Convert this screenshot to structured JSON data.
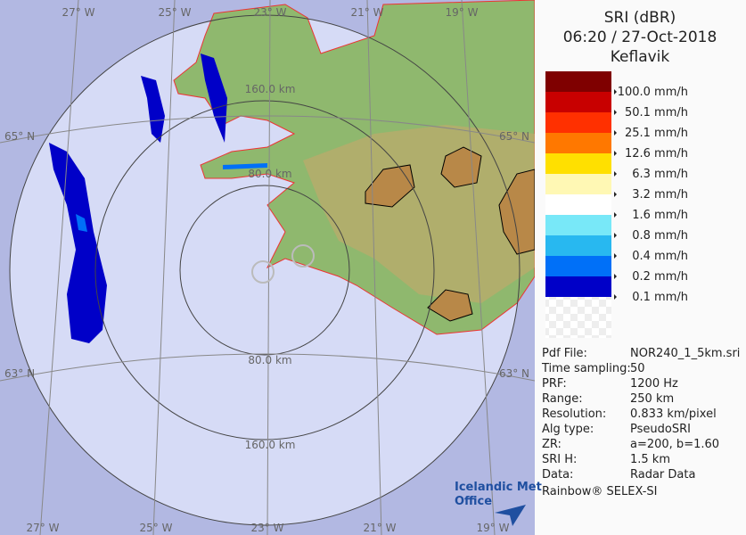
{
  "map": {
    "title": "SRI (dBR)",
    "datetime": "06:20 / 27-Oct-2018",
    "site": "Keflavik",
    "longitude_labels": [
      "27° W",
      "25° W",
      "23° W",
      "21° W",
      "19° W"
    ],
    "latitude_labels": [
      "65° N",
      "63° N"
    ],
    "range_labels": [
      "80.0 km",
      "160.0 km"
    ],
    "legend": {
      "colors": [
        "#7f0000",
        "#c80000",
        "#ff3000",
        "#ff7800",
        "#ffe000",
        "#fff8b4",
        "#ffffff",
        "#78e8f8",
        "#28b8f0",
        "#0070f8",
        "#0000c8"
      ],
      "labels": [
        "100.0 mm/h",
        "50.1 mm/h",
        "25.1 mm/h",
        "12.6 mm/h",
        "6.3 mm/h",
        "3.2 mm/h",
        "1.6 mm/h",
        "0.8 mm/h",
        "0.4 mm/h",
        "0.2 mm/h",
        "0.1 mm/h"
      ]
    },
    "info": [
      [
        "Pdf File:",
        "NOR240_1_5km.sri"
      ],
      [
        "Time sampling:",
        "50"
      ],
      [
        "PRF:",
        "1200 Hz"
      ],
      [
        "Range:",
        "250 km"
      ],
      [
        "Resolution:",
        "0.833 km/pixel"
      ],
      [
        "Alg type:",
        "PseudoSRI"
      ],
      [
        "ZR:",
        "a=200, b=1.60"
      ],
      [
        "SRI H:",
        "1.5 km"
      ],
      [
        "Data:",
        "Radar Data"
      ]
    ],
    "footer": "Rainbow® SELEX-SI",
    "logo": [
      "Icelandic Met",
      "Office"
    ]
  }
}
